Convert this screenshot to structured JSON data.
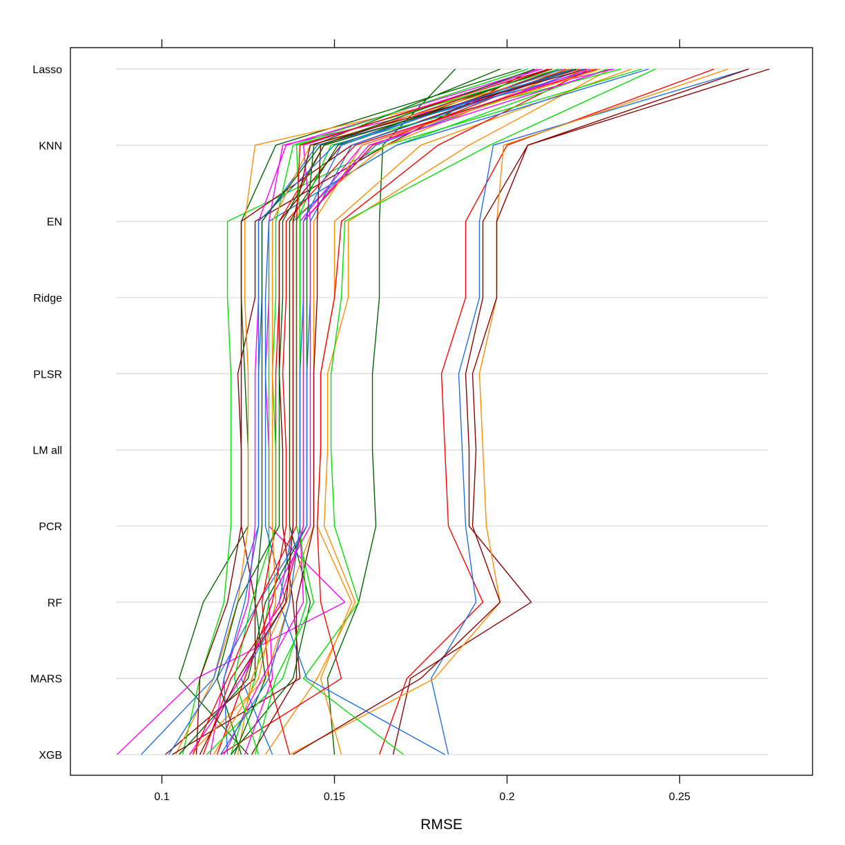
{
  "chart_data": {
    "type": "line",
    "subtype": "parallel-coordinates",
    "title": "",
    "xlabel": "RMSE",
    "ylabel": "",
    "xlim": [
      0.0735,
      0.2885
    ],
    "x_ticks": [
      0.1,
      0.15,
      0.2,
      0.25
    ],
    "x_tick_labels": [
      "0.1",
      "0.15",
      "0.2",
      "0.25"
    ],
    "grid": "horizontal",
    "legend": "none",
    "categories": [
      "Lasso",
      "KNN",
      "EN",
      "Ridge",
      "PLSR",
      "LM all",
      "PCR",
      "RF",
      "MARS",
      "XGB"
    ],
    "series": [
      {
        "color": "#8B0000",
        "values": [
          0.276,
          0.206,
          0.193,
          0.193,
          0.188,
          0.189,
          0.189,
          0.207,
          0.172,
          0.167
        ]
      },
      {
        "color": "#FF0000",
        "values": [
          0.26,
          0.2,
          0.188,
          0.188,
          0.181,
          0.182,
          0.183,
          0.193,
          0.171,
          0.163
        ]
      },
      {
        "color": "#1E6FE6",
        "values": [
          0.27,
          0.196,
          0.192,
          0.192,
          0.186,
          0.187,
          0.188,
          0.191,
          0.178,
          0.183
        ]
      },
      {
        "color": "#FF8C00",
        "values": [
          0.264,
          0.199,
          0.197,
          0.197,
          0.192,
          0.193,
          0.194,
          0.198,
          0.179,
          0.137
        ]
      },
      {
        "color": "#8B0000",
        "values": [
          0.27,
          0.206,
          0.197,
          0.197,
          0.19,
          0.191,
          0.19,
          0.198,
          0.175,
          0.138
        ]
      },
      {
        "color": "#006400",
        "values": [
          0.185,
          0.164,
          0.163,
          0.163,
          0.161,
          0.161,
          0.162,
          0.157,
          0.148,
          0.15
        ]
      },
      {
        "color": "#FF8C00",
        "values": [
          0.23,
          0.189,
          0.154,
          0.154,
          0.148,
          0.148,
          0.147,
          0.156,
          0.145,
          0.13
        ]
      },
      {
        "color": "#00E000",
        "values": [
          0.243,
          0.195,
          0.153,
          0.152,
          0.149,
          0.149,
          0.15,
          0.157,
          0.141,
          0.17
        ]
      },
      {
        "color": "#FF8C00",
        "values": [
          0.236,
          0.175,
          0.15,
          0.15,
          0.146,
          0.146,
          0.145,
          0.155,
          0.146,
          0.152
        ]
      },
      {
        "color": "#FF0000",
        "values": [
          0.224,
          0.18,
          0.152,
          0.15,
          0.146,
          0.146,
          0.145,
          0.146,
          0.152,
          0.117
        ]
      },
      {
        "color": "#8B0000",
        "values": [
          0.208,
          0.165,
          0.127,
          0.127,
          0.122,
          0.123,
          0.123,
          0.127,
          0.127,
          0.101
        ]
      },
      {
        "color": "#006400",
        "values": [
          0.204,
          0.133,
          0.123,
          0.123,
          0.124,
          0.125,
          0.125,
          0.112,
          0.105,
          0.125
        ]
      },
      {
        "color": "#00E000",
        "values": [
          0.239,
          0.165,
          0.119,
          0.119,
          0.12,
          0.12,
          0.12,
          0.118,
          0.111,
          0.106
        ]
      },
      {
        "color": "#FF8C00",
        "values": [
          0.225,
          0.127,
          0.124,
          0.124,
          0.125,
          0.125,
          0.125,
          0.122,
          0.115,
          0.104
        ]
      },
      {
        "color": "#FF00FF",
        "values": [
          0.231,
          0.135,
          0.131,
          0.131,
          0.13,
          0.131,
          0.131,
          0.153,
          0.11,
          0.087
        ]
      },
      {
        "color": "#1E6FE6",
        "values": [
          0.226,
          0.145,
          0.129,
          0.129,
          0.128,
          0.128,
          0.128,
          0.121,
          0.115,
          0.094
        ]
      },
      {
        "color": "#8B0000",
        "values": [
          0.218,
          0.155,
          0.123,
          0.123,
          0.123,
          0.123,
          0.123,
          0.119,
          0.111,
          0.11
        ]
      },
      {
        "color": "#FF00FF",
        "values": [
          0.209,
          0.136,
          0.128,
          0.128,
          0.127,
          0.127,
          0.127,
          0.125,
          0.118,
          0.114
        ]
      },
      {
        "color": "#00E000",
        "values": [
          0.229,
          0.168,
          0.131,
          0.131,
          0.131,
          0.131,
          0.131,
          0.131,
          0.127,
          0.12
        ]
      },
      {
        "color": "#1E6FE6",
        "values": [
          0.241,
          0.168,
          0.131,
          0.13,
          0.13,
          0.13,
          0.13,
          0.136,
          0.123,
          0.132
        ]
      },
      {
        "color": "#FF0000",
        "values": [
          0.221,
          0.147,
          0.134,
          0.134,
          0.133,
          0.133,
          0.133,
          0.129,
          0.131,
          0.137
        ]
      },
      {
        "color": "#8B0000",
        "values": [
          0.215,
          0.152,
          0.134,
          0.134,
          0.134,
          0.135,
          0.135,
          0.138,
          0.14,
          0.103
        ]
      },
      {
        "color": "#FF8C00",
        "values": [
          0.219,
          0.165,
          0.137,
          0.137,
          0.137,
          0.137,
          0.137,
          0.137,
          0.13,
          0.108
        ]
      },
      {
        "color": "#006400",
        "values": [
          0.212,
          0.151,
          0.137,
          0.137,
          0.137,
          0.137,
          0.137,
          0.143,
          0.138,
          0.12
        ]
      },
      {
        "color": "#1E6FE6",
        "values": [
          0.222,
          0.162,
          0.138,
          0.138,
          0.138,
          0.138,
          0.138,
          0.134,
          0.142,
          0.182
        ]
      },
      {
        "color": "#00E000",
        "values": [
          0.233,
          0.149,
          0.139,
          0.139,
          0.139,
          0.139,
          0.139,
          0.144,
          0.133,
          0.127
        ]
      },
      {
        "color": "#FF00FF",
        "values": [
          0.224,
          0.158,
          0.14,
          0.14,
          0.14,
          0.14,
          0.14,
          0.141,
          0.129,
          0.118
        ]
      },
      {
        "color": "#FF0000",
        "values": [
          0.217,
          0.161,
          0.141,
          0.141,
          0.141,
          0.141,
          0.141,
          0.135,
          0.12,
          0.112
        ]
      },
      {
        "color": "#006400",
        "values": [
          0.198,
          0.144,
          0.142,
          0.142,
          0.142,
          0.142,
          0.142,
          0.13,
          0.125,
          0.105
        ]
      },
      {
        "color": "#1E6FE6",
        "values": [
          0.22,
          0.155,
          0.143,
          0.143,
          0.142,
          0.142,
          0.142,
          0.128,
          0.116,
          0.102
        ]
      },
      {
        "color": "#FF8C00",
        "values": [
          0.227,
          0.158,
          0.144,
          0.144,
          0.144,
          0.144,
          0.144,
          0.136,
          0.126,
          0.122
        ]
      },
      {
        "color": "#8B0000",
        "values": [
          0.213,
          0.146,
          0.145,
          0.145,
          0.144,
          0.144,
          0.144,
          0.139,
          0.139,
          0.126
        ]
      },
      {
        "color": "#FF00FF",
        "values": [
          0.21,
          0.141,
          0.143,
          0.143,
          0.143,
          0.143,
          0.143,
          0.131,
          0.132,
          0.124
        ]
      },
      {
        "color": "#00E000",
        "values": [
          0.206,
          0.138,
          0.133,
          0.133,
          0.132,
          0.133,
          0.133,
          0.126,
          0.121,
          0.128
        ]
      },
      {
        "color": "#006400",
        "values": [
          0.22,
          0.147,
          0.135,
          0.135,
          0.134,
          0.134,
          0.134,
          0.122,
          0.116,
          0.123
        ]
      },
      {
        "color": "#FF0000",
        "values": [
          0.226,
          0.156,
          0.136,
          0.136,
          0.135,
          0.136,
          0.136,
          0.132,
          0.124,
          0.116
        ]
      },
      {
        "color": "#1E6FE6",
        "values": [
          0.219,
          0.15,
          0.128,
          0.128,
          0.128,
          0.128,
          0.128,
          0.124,
          0.118,
          0.119
        ]
      },
      {
        "color": "#FF8C00",
        "values": [
          0.218,
          0.143,
          0.132,
          0.132,
          0.132,
          0.132,
          0.132,
          0.133,
          0.128,
          0.115
        ]
      },
      {
        "color": "#FF00FF",
        "values": [
          0.23,
          0.16,
          0.141,
          0.141,
          0.141,
          0.141,
          0.141,
          0.134,
          0.123,
          0.108
        ]
      },
      {
        "color": "#8B0000",
        "values": [
          0.223,
          0.143,
          0.138,
          0.138,
          0.138,
          0.138,
          0.138,
          0.136,
          0.122,
          0.111
        ]
      },
      {
        "color": "#00E000",
        "values": [
          0.215,
          0.139,
          0.14,
          0.14,
          0.14,
          0.14,
          0.14,
          0.142,
          0.135,
          0.113
        ]
      },
      {
        "color": "#006400",
        "values": [
          0.208,
          0.146,
          0.129,
          0.129,
          0.129,
          0.129,
          0.129,
          0.127,
          0.13,
          0.121
        ]
      },
      {
        "color": "#FF0000",
        "values": [
          0.212,
          0.14,
          0.139,
          0.139,
          0.139,
          0.139,
          0.139,
          0.128,
          0.119,
          0.109
        ]
      },
      {
        "color": "#1E6FE6",
        "values": [
          0.216,
          0.152,
          0.141,
          0.141,
          0.14,
          0.14,
          0.14,
          0.137,
          0.131,
          0.117
        ]
      }
    ]
  }
}
